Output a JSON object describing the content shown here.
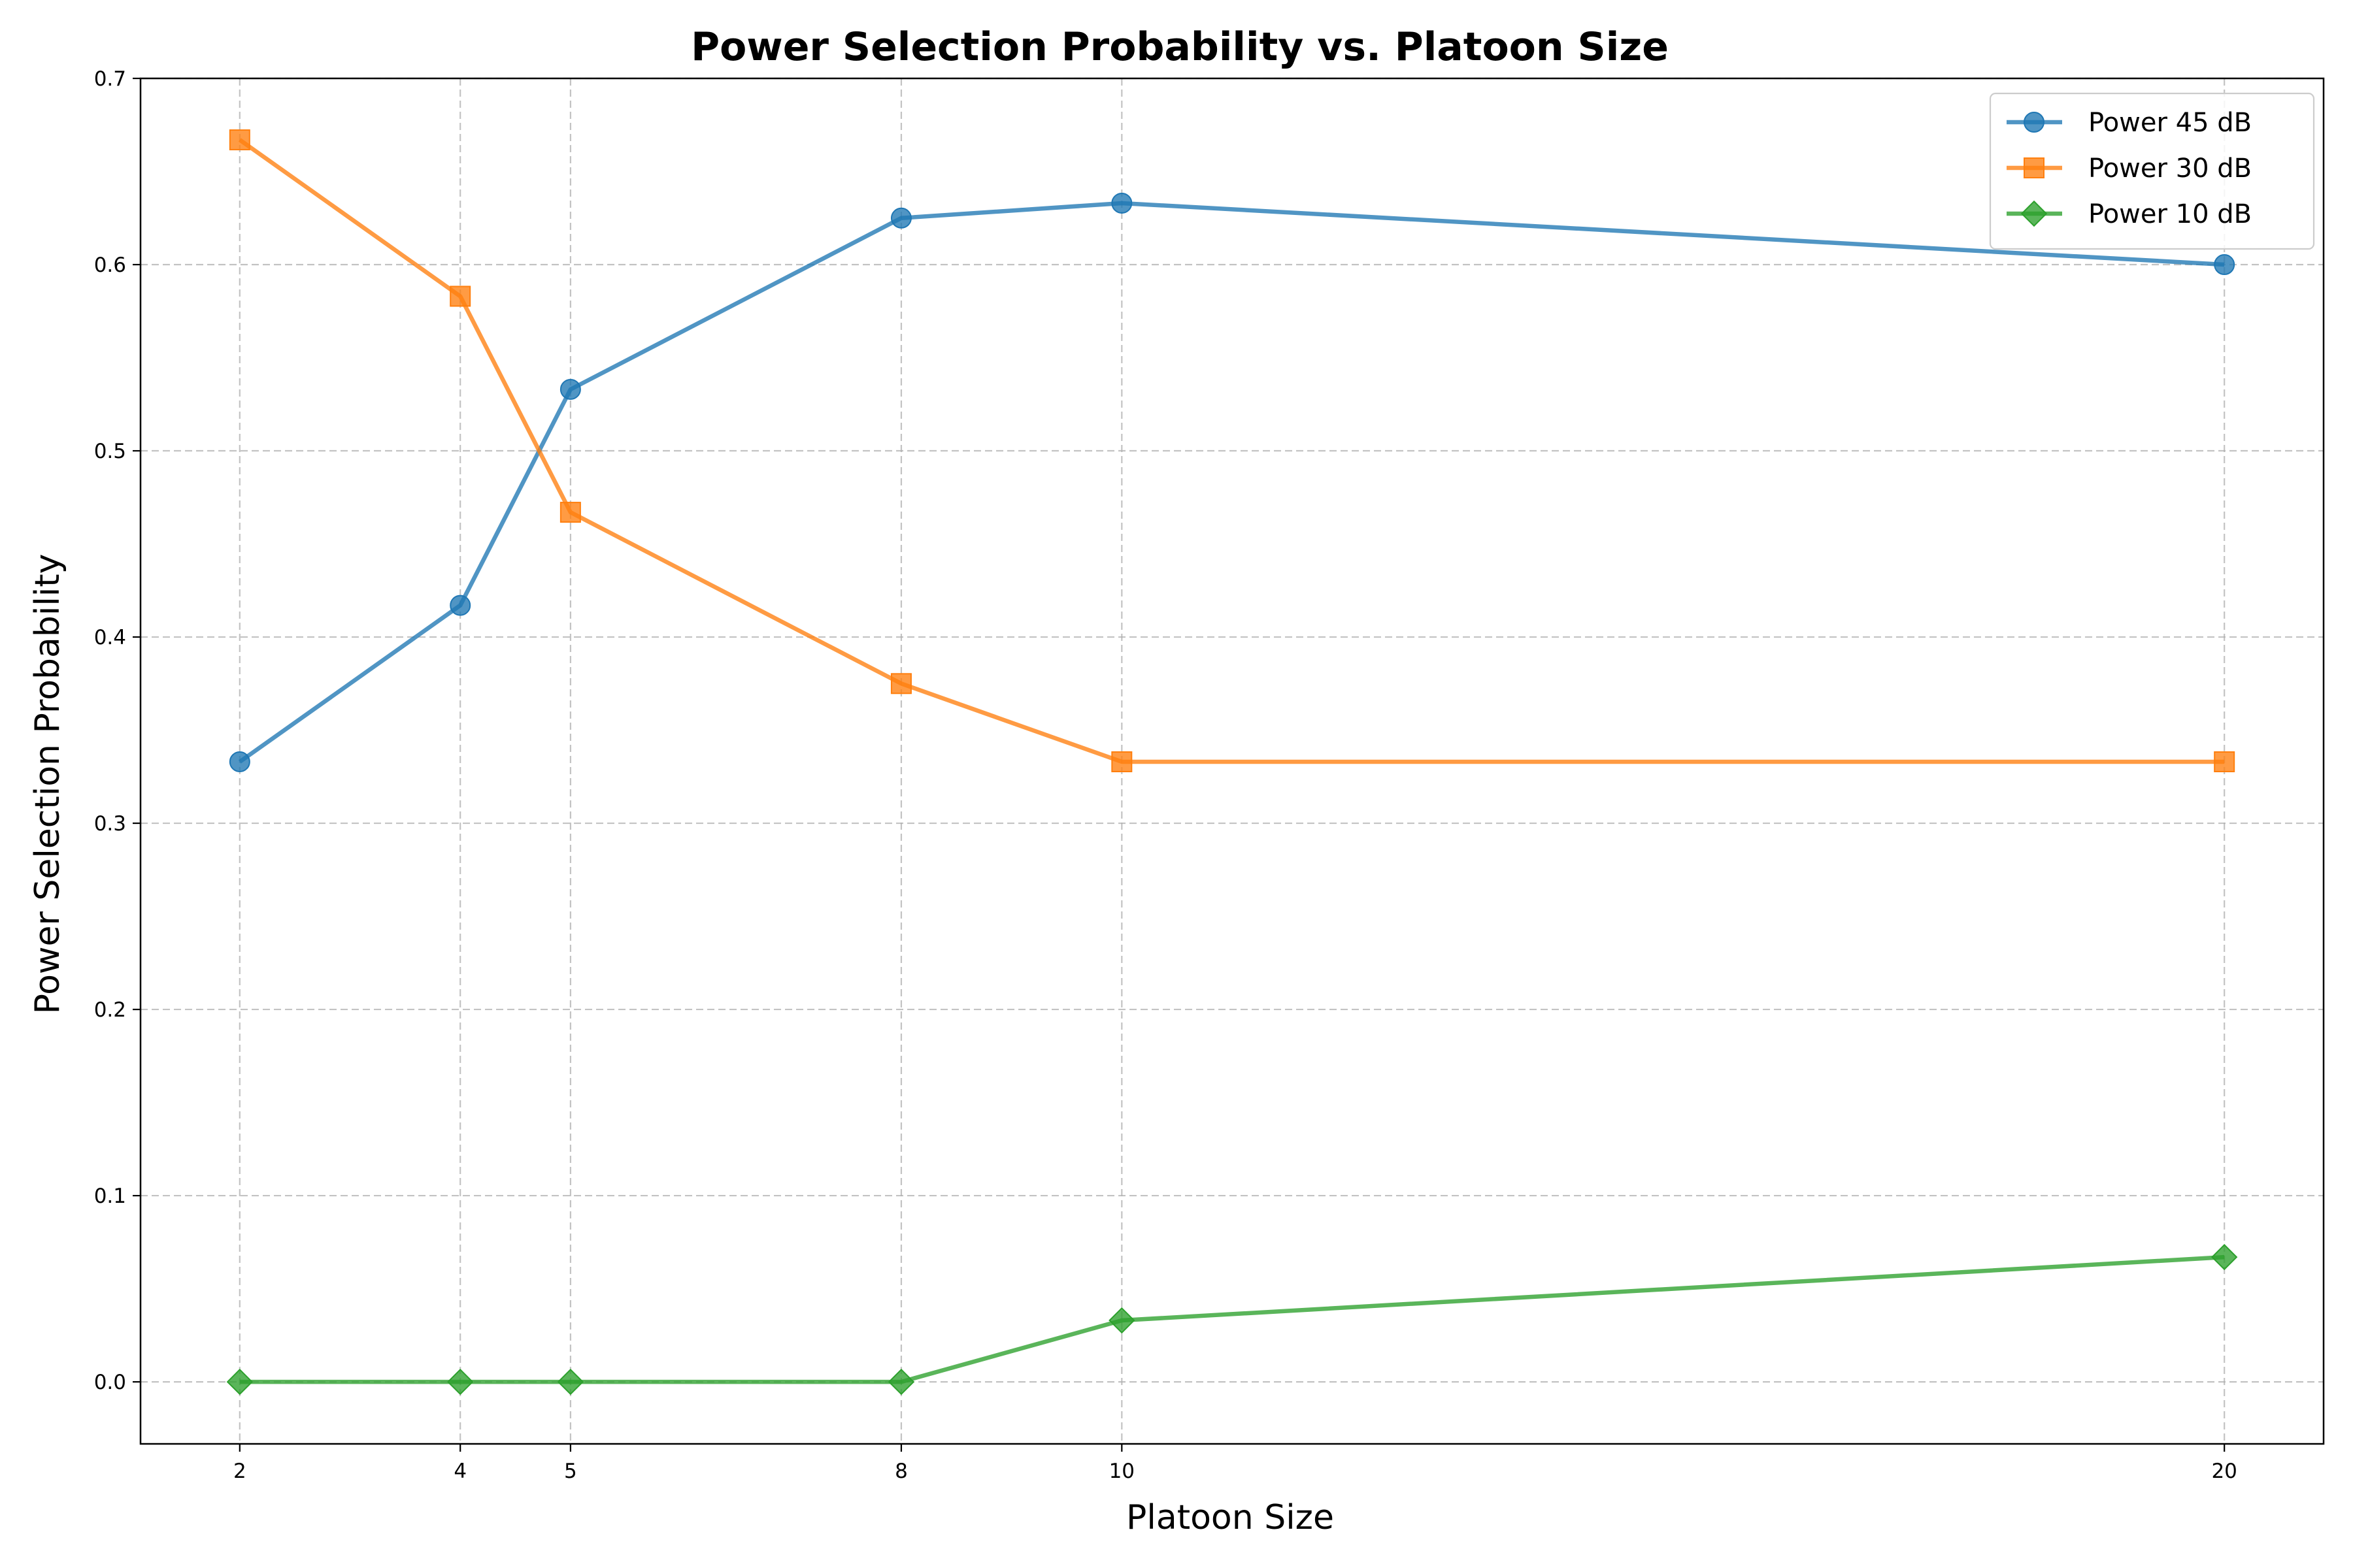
{
  "chart_data": {
    "type": "line",
    "title": "Power Selection Probability vs. Platoon Size",
    "xlabel": "Platoon Size",
    "ylabel": "Power Selection Probability",
    "x": [
      2,
      4,
      5,
      8,
      10,
      20
    ],
    "xticks": [
      "2",
      "4",
      "5",
      "8",
      "10",
      "20"
    ],
    "xlim": [
      1.1,
      20.9
    ],
    "ylim": [
      -0.0333,
      0.7
    ],
    "yticks": [
      "0.0",
      "0.1",
      "0.2",
      "0.3",
      "0.4",
      "0.5",
      "0.6",
      "0.7"
    ],
    "grid": true,
    "legend_position": "top-right",
    "series": [
      {
        "name": "Power 45 dB",
        "values": [
          0.333,
          0.417,
          0.533,
          0.625,
          0.633,
          0.6
        ],
        "color": "#1f77b4",
        "marker": "circle"
      },
      {
        "name": "Power 30 dB",
        "values": [
          0.667,
          0.583,
          0.467,
          0.375,
          0.333,
          0.333
        ],
        "color": "#ff7f0e",
        "marker": "square"
      },
      {
        "name": "Power 10 dB",
        "values": [
          0.0,
          0.0,
          0.0,
          0.0,
          0.033,
          0.067
        ],
        "color": "#2ca02c",
        "marker": "diamond"
      }
    ]
  }
}
